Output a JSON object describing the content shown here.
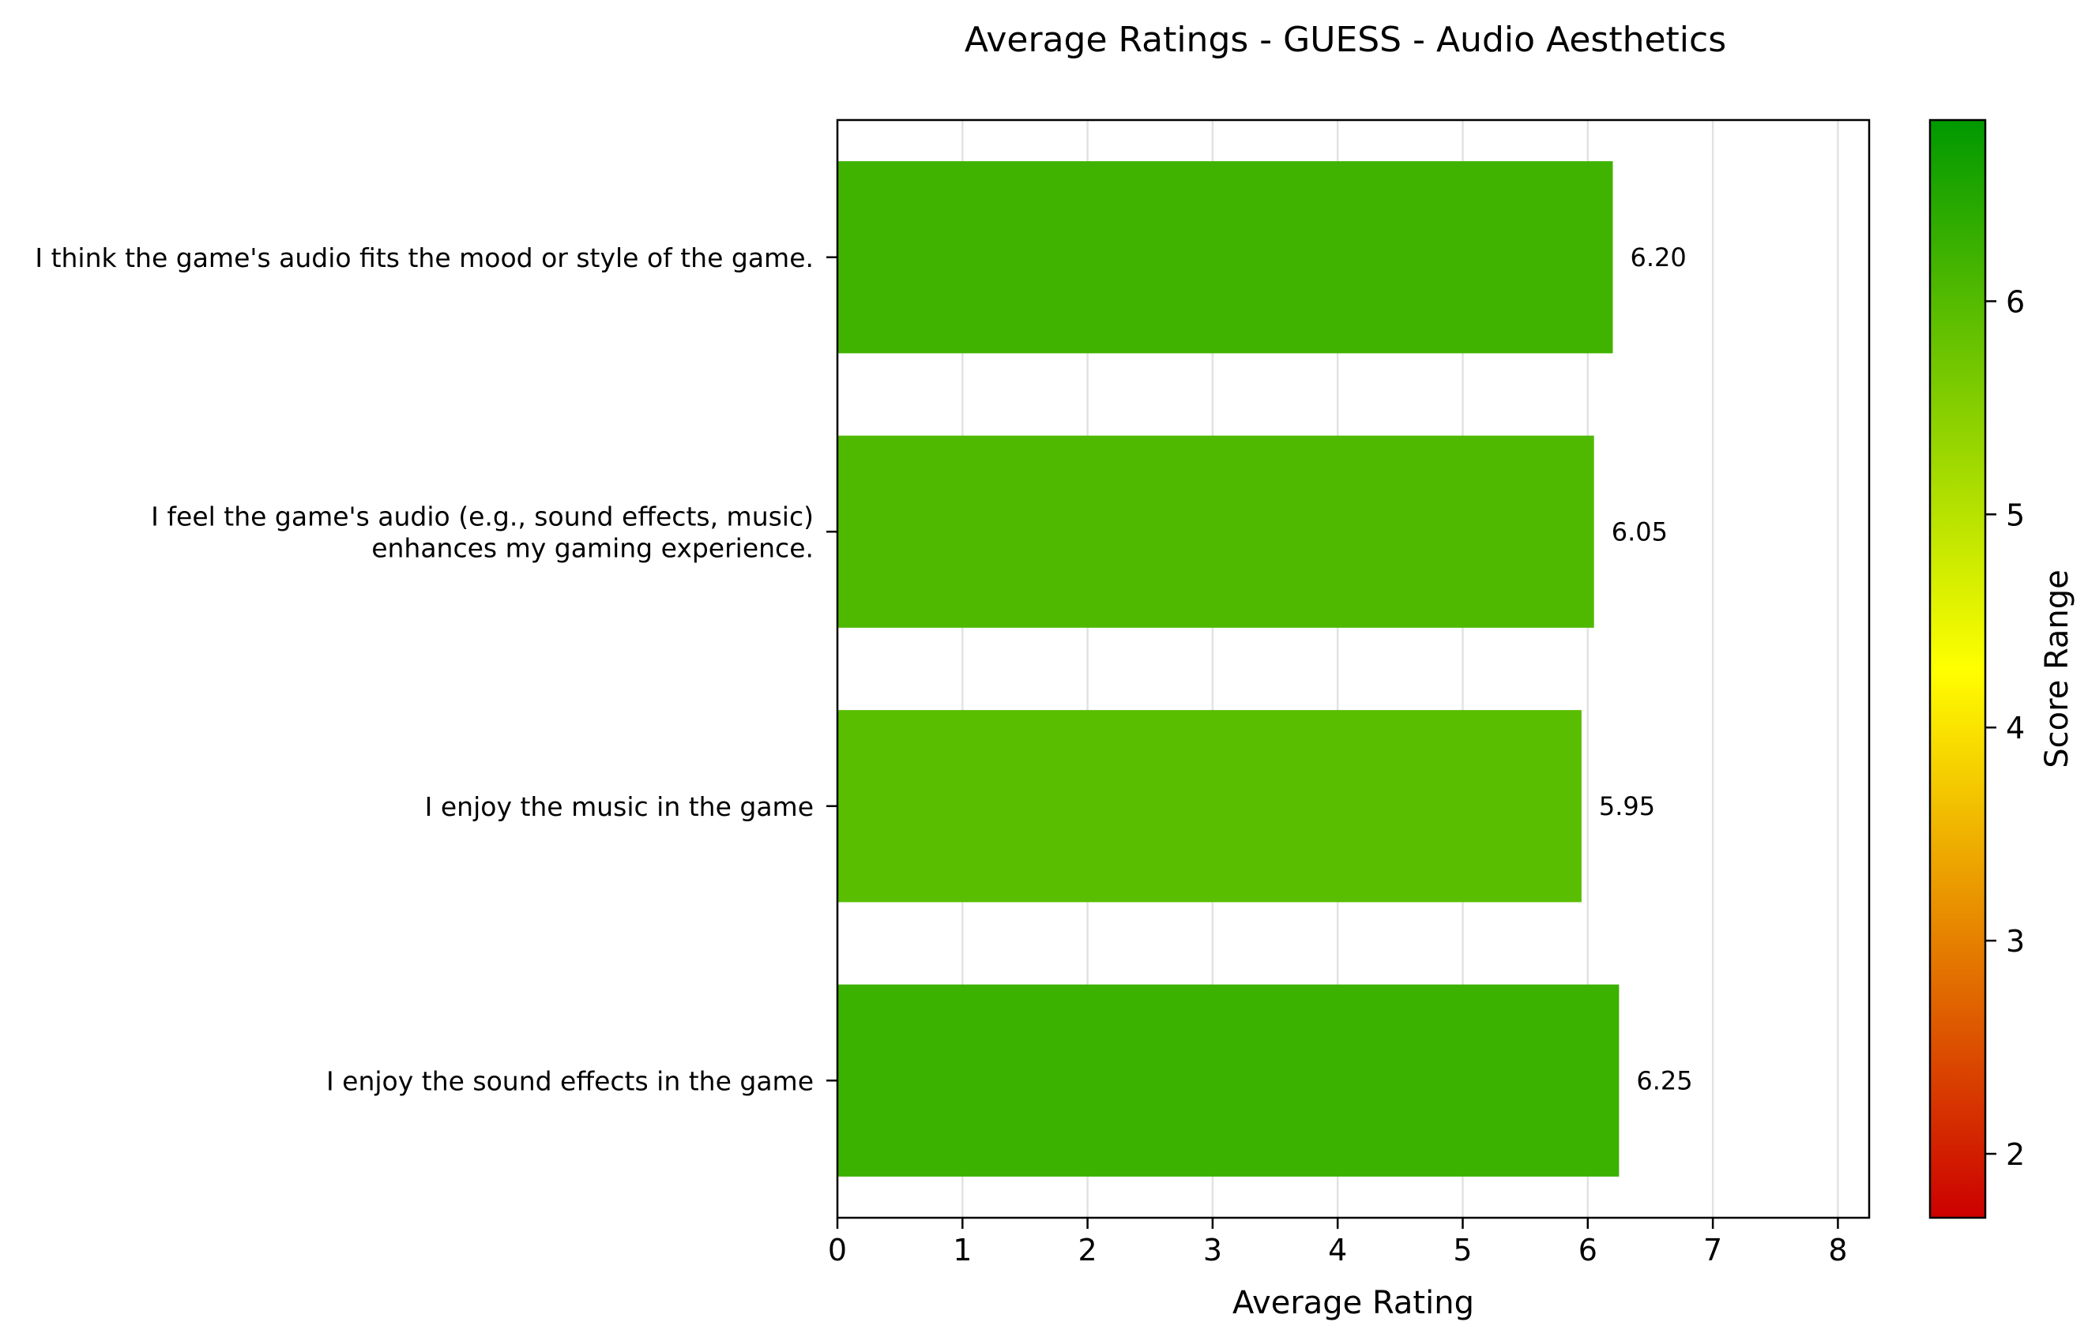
{
  "chart_data": {
    "type": "bar",
    "orientation": "horizontal",
    "title": "Average Ratings - GUESS - Audio Aesthetics",
    "xlabel": "Average Rating",
    "ylabel": "",
    "xlim": [
      0,
      8.25
    ],
    "xticks": [
      "0",
      "1",
      "2",
      "3",
      "4",
      "5",
      "6",
      "7",
      "8"
    ],
    "grid": "vertical",
    "categories": [
      [
        "I think the game's audio fits the mood or style of the game."
      ],
      [
        "I feel the game's audio (e.g., sound effects, music)",
        "enhances my gaming experience."
      ],
      [
        "I enjoy the music in the game"
      ],
      [
        "I enjoy the sound effects in the game"
      ]
    ],
    "values": [
      6.2,
      6.05,
      5.95,
      6.25
    ],
    "value_labels": [
      "6.20",
      "6.05",
      "5.95",
      "6.25"
    ],
    "colorbar": {
      "label": "Score Range",
      "range": [
        1.7,
        6.85
      ],
      "ticks": [
        "2",
        "3",
        "4",
        "5",
        "6"
      ],
      "colormap": [
        "#cc0000",
        "#ffff00",
        "#009900"
      ]
    }
  }
}
